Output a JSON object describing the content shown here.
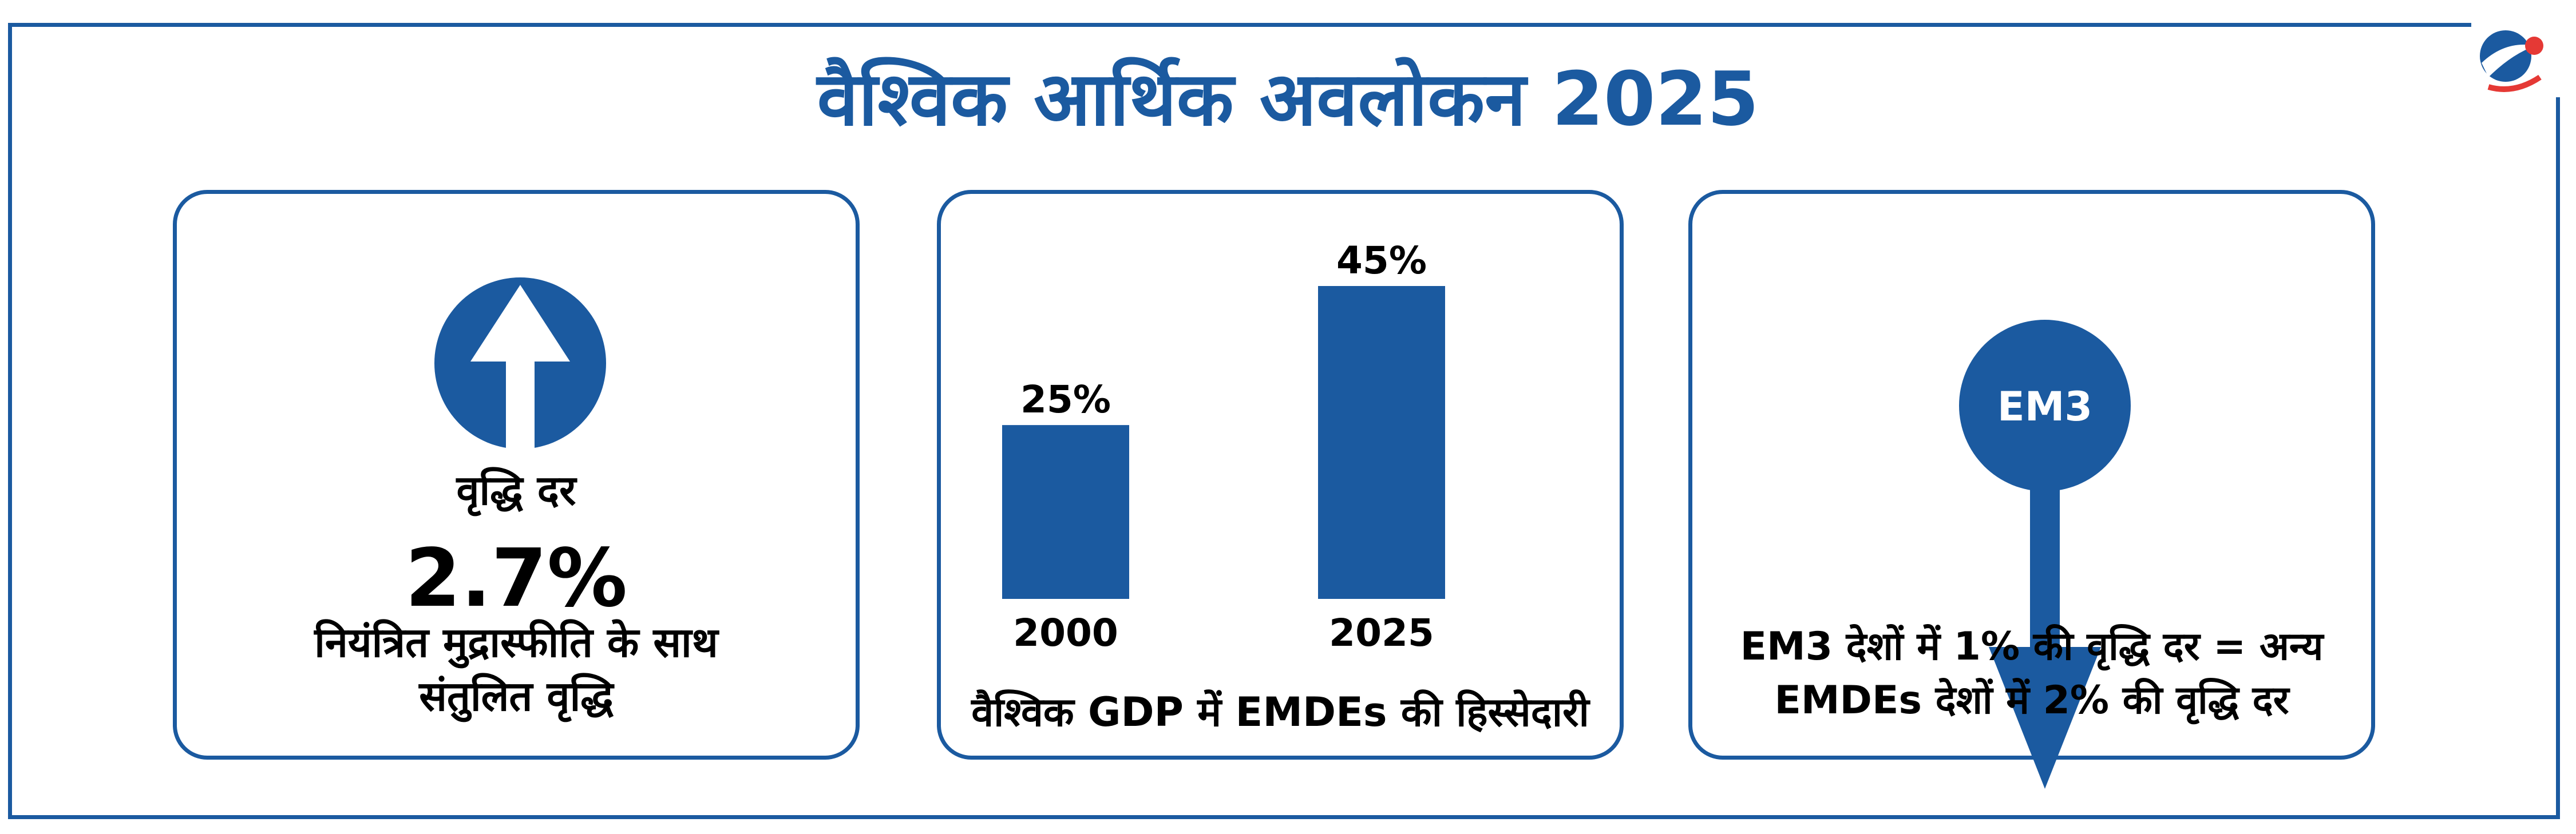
{
  "title": "वैश्विक आर्थिक अवलोकन 2025",
  "colors": {
    "primary": "#1b5aa0",
    "logo_red": "#e53935"
  },
  "panels": {
    "growth": {
      "icon": "arrow-up-icon",
      "label": "वृद्धि दर",
      "value": "2.7%",
      "desc_line1": "नियंत्रित मुद्रास्फीति के साथ",
      "desc_line2": "संतुलित वृद्धि"
    },
    "share": {
      "caption": "वैश्विक GDP में EMDEs की हिस्सेदारी"
    },
    "em3": {
      "icon": "arrow-down-icon",
      "badge": "EM3",
      "desc_line1": "EM3 देशों में 1% की वृद्धि दर = अन्य",
      "desc_line2": "EMDEs देशों में 2% की वृद्धि दर"
    }
  },
  "chart_data": {
    "type": "bar",
    "categories": [
      "2000",
      "2025"
    ],
    "values": [
      25,
      45
    ],
    "value_labels": [
      "25%",
      "45%"
    ],
    "title": "वैश्विक GDP में EMDEs की हिस्सेदारी",
    "ylim": [
      0,
      50
    ],
    "grid": false,
    "color": "#1b5aa0"
  }
}
